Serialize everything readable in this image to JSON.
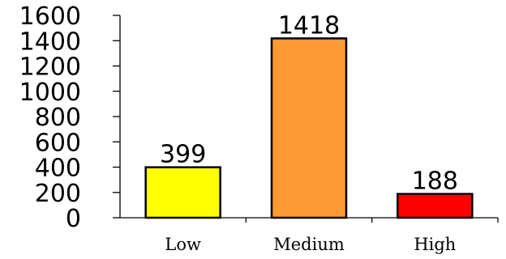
{
  "chart_data": {
    "type": "bar",
    "title": "",
    "xlabel": "",
    "ylabel": "",
    "categories": [
      "Low",
      "Medium",
      "High"
    ],
    "values": [
      399,
      1418,
      188
    ],
    "value_labels": [
      "399",
      "1418",
      "188"
    ],
    "colors": [
      "#ffff00",
      "#ff9933",
      "#ff0000"
    ],
    "ylim": [
      0,
      1600
    ],
    "yticks": [
      0,
      200,
      400,
      600,
      800,
      1000,
      1200,
      1400,
      1600
    ],
    "ytick_labels": [
      "0",
      "200",
      "400",
      "600",
      "800",
      "1000",
      "1200",
      "1400",
      "1600"
    ],
    "grid": false,
    "legend": "none",
    "data_labels": "above bars"
  }
}
